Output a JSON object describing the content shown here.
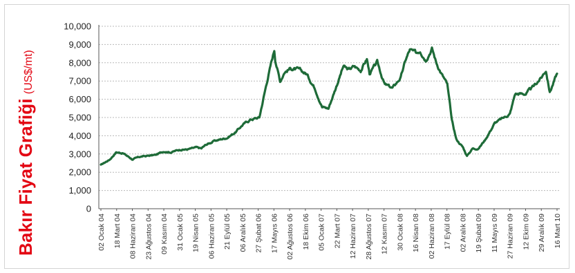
{
  "title": "Bakır Fiyat Grafiği",
  "unit": "(US$/mt)",
  "colors": {
    "line": "#1e6b38",
    "title": "#e30613",
    "grid": "#b8b8b8"
  },
  "chart_data": {
    "type": "line",
    "title": "Bakır Fiyat Grafiği",
    "ylabel": "(US$/mt)",
    "xlabel": "",
    "ylim": [
      0,
      10000
    ],
    "grid": true,
    "yticks": [
      0,
      1000,
      2000,
      3000,
      4000,
      5000,
      6000,
      7000,
      8000,
      9000,
      10000
    ],
    "ytick_labels": [
      "0",
      "1,000",
      "2,000",
      "3,000",
      "4,000",
      "5,000",
      "6,000",
      "7,000",
      "8,000",
      "9,000",
      "10,000"
    ],
    "x_tick_labels": [
      "02 Ocak 04",
      "18 Mart 04",
      "08 Haziran 04",
      "23 Ağustos 04",
      "09 Kasım 04",
      "31 Ocak 05",
      "19 Nisan 05",
      "06 Haziran 05",
      "21 Eylül 05",
      "06 Aralık 05",
      "27 Şubat 06",
      "17 Mayıs 06",
      "02 Ağustos 06",
      "18 Ekim 06",
      "05 Ocak 07",
      "22 Mart 07",
      "12 Haziran 07",
      "28 Ağustos 07",
      "12 Kasım 07",
      "30 Ocak 08",
      "16 Nisan 08",
      "02 Haziran 08",
      "17 Eylül 08",
      "02 Aralık 08",
      "19 Şubat 09",
      "11 Mayıs 09",
      "27 Haziran 09",
      "12 Ekim 09",
      "29 Aralık 09",
      "16 Mart 10"
    ],
    "series": [
      {
        "name": "",
        "x": [
          "2004-01-02",
          "2004-02-15",
          "2004-03-18",
          "2004-04-20",
          "2004-06-08",
          "2004-07-15",
          "2004-08-23",
          "2004-10-01",
          "2004-11-09",
          "2004-12-15",
          "2005-01-31",
          "2005-03-05",
          "2005-04-19",
          "2005-05-15",
          "2005-06-06",
          "2005-07-15",
          "2005-09-21",
          "2005-11-01",
          "2005-12-06",
          "2006-01-15",
          "2006-02-27",
          "2006-04-10",
          "2006-05-12",
          "2006-05-17",
          "2006-06-10",
          "2006-07-01",
          "2006-08-02",
          "2006-09-10",
          "2006-10-18",
          "2006-12-01",
          "2007-01-05",
          "2007-02-05",
          "2007-03-22",
          "2007-04-20",
          "2007-05-15",
          "2007-06-12",
          "2007-07-15",
          "2007-08-15",
          "2007-08-28",
          "2007-10-05",
          "2007-11-12",
          "2007-12-20",
          "2008-01-30",
          "2008-02-25",
          "2008-03-15",
          "2008-04-16",
          "2008-05-05",
          "2008-06-02",
          "2008-07-03",
          "2008-07-25",
          "2008-08-20",
          "2008-09-17",
          "2008-10-10",
          "2008-11-01",
          "2008-12-02",
          "2008-12-24",
          "2009-01-20",
          "2009-02-19",
          "2009-03-25",
          "2009-05-11",
          "2009-06-27",
          "2009-07-25",
          "2009-08-20",
          "2009-10-12",
          "2009-11-20",
          "2009-12-29",
          "2010-01-20",
          "2010-02-08",
          "2010-03-16"
        ],
        "values": [
          2400,
          2700,
          3100,
          3050,
          2700,
          2850,
          2900,
          2950,
          3150,
          3100,
          3250,
          3250,
          3350,
          3300,
          3500,
          3700,
          3900,
          4200,
          4600,
          4900,
          5000,
          7200,
          8700,
          8200,
          7000,
          7500,
          7700,
          7600,
          7400,
          6600,
          5600,
          5500,
          6900,
          7800,
          7600,
          7800,
          7600,
          8200,
          7400,
          8000,
          6800,
          6600,
          7200,
          8200,
          8700,
          8500,
          8700,
          8200,
          8800,
          8000,
          7400,
          6800,
          4800,
          3800,
          3400,
          2900,
          3300,
          3300,
          3800,
          4700,
          5000,
          5200,
          6300,
          6300,
          6700,
          7200,
          7600,
          6400,
          7400
        ]
      }
    ]
  }
}
